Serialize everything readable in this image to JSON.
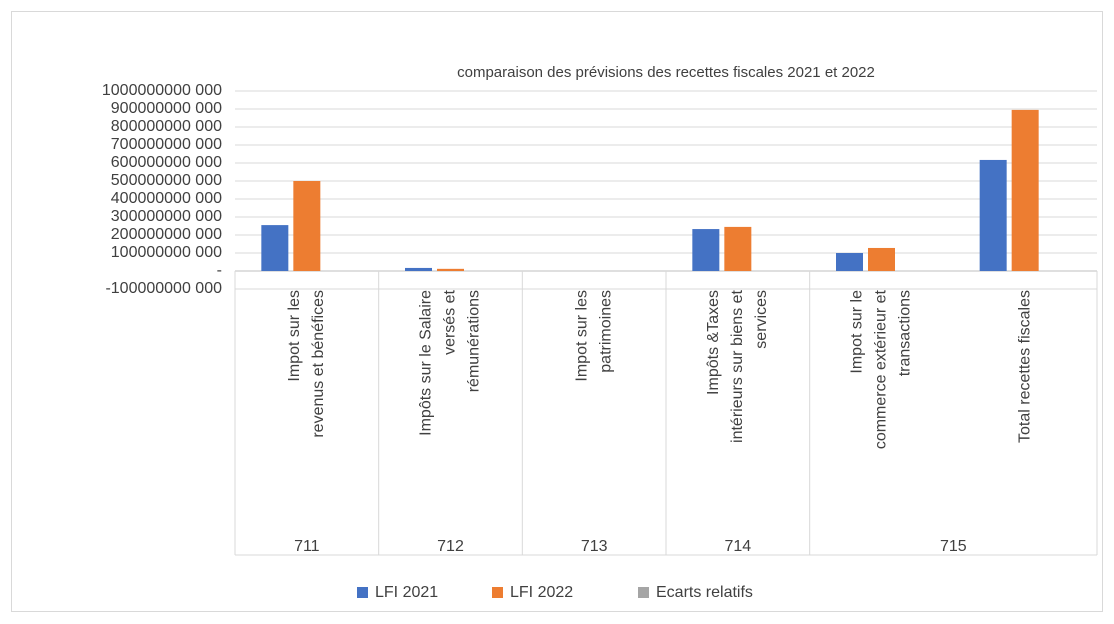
{
  "chart_data": {
    "type": "bar",
    "title": "comparaison des prévisions des recettes fiscales 2021 et 2022",
    "groups": [
      {
        "label": "711",
        "categories": [
          [
            "Impot sur les",
            "revenus et bénéfices"
          ]
        ]
      },
      {
        "label": "712",
        "categories": [
          [
            "Impôts sur le Salaire",
            "versés et",
            "rémunérations"
          ]
        ]
      },
      {
        "label": "713",
        "categories": [
          [
            "Impot sur les",
            "patrimoines"
          ]
        ]
      },
      {
        "label": "714",
        "categories": [
          [
            "Impôts &Taxes",
            "intérieurs sur biens et",
            "services"
          ]
        ]
      },
      {
        "label": "715",
        "categories": [
          [
            "Impot sur le",
            "commerce extérieur et",
            "transactions"
          ],
          [
            "Total recettes fiscales"
          ]
        ]
      }
    ],
    "series": [
      {
        "name": "LFI 2021",
        "color": "#4472c4",
        "values": [
          255000000000,
          17000000000,
          0,
          233000000000,
          100000000000,
          617000000000
        ]
      },
      {
        "name": "LFI 2022",
        "color": "#ed7d31",
        "values": [
          500000000000,
          12000000000,
          0,
          245000000000,
          128000000000,
          895000000000
        ]
      },
      {
        "name": "Ecarts relatifs",
        "color": "#a5a5a5",
        "values": [
          0,
          0,
          0,
          0,
          0,
          0
        ]
      }
    ],
    "ylim": [
      -100000000000,
      1000000000000
    ],
    "yticks": [
      {
        "value": -100000000000,
        "label": "-100000000 000"
      },
      {
        "value": 0,
        "label": "-"
      },
      {
        "value": 100000000000,
        "label": "100000000 000"
      },
      {
        "value": 200000000000,
        "label": "200000000 000"
      },
      {
        "value": 300000000000,
        "label": "300000000 000"
      },
      {
        "value": 400000000000,
        "label": "400000000 000"
      },
      {
        "value": 500000000000,
        "label": "500000000 000"
      },
      {
        "value": 600000000000,
        "label": "600000000 000"
      },
      {
        "value": 700000000000,
        "label": "700000000 000"
      },
      {
        "value": 800000000000,
        "label": "800000000 000"
      },
      {
        "value": 900000000000,
        "label": "900000000 000"
      },
      {
        "value": 1000000000000,
        "label": "1000000000 000"
      }
    ],
    "grid": true,
    "legend": "bottom"
  }
}
